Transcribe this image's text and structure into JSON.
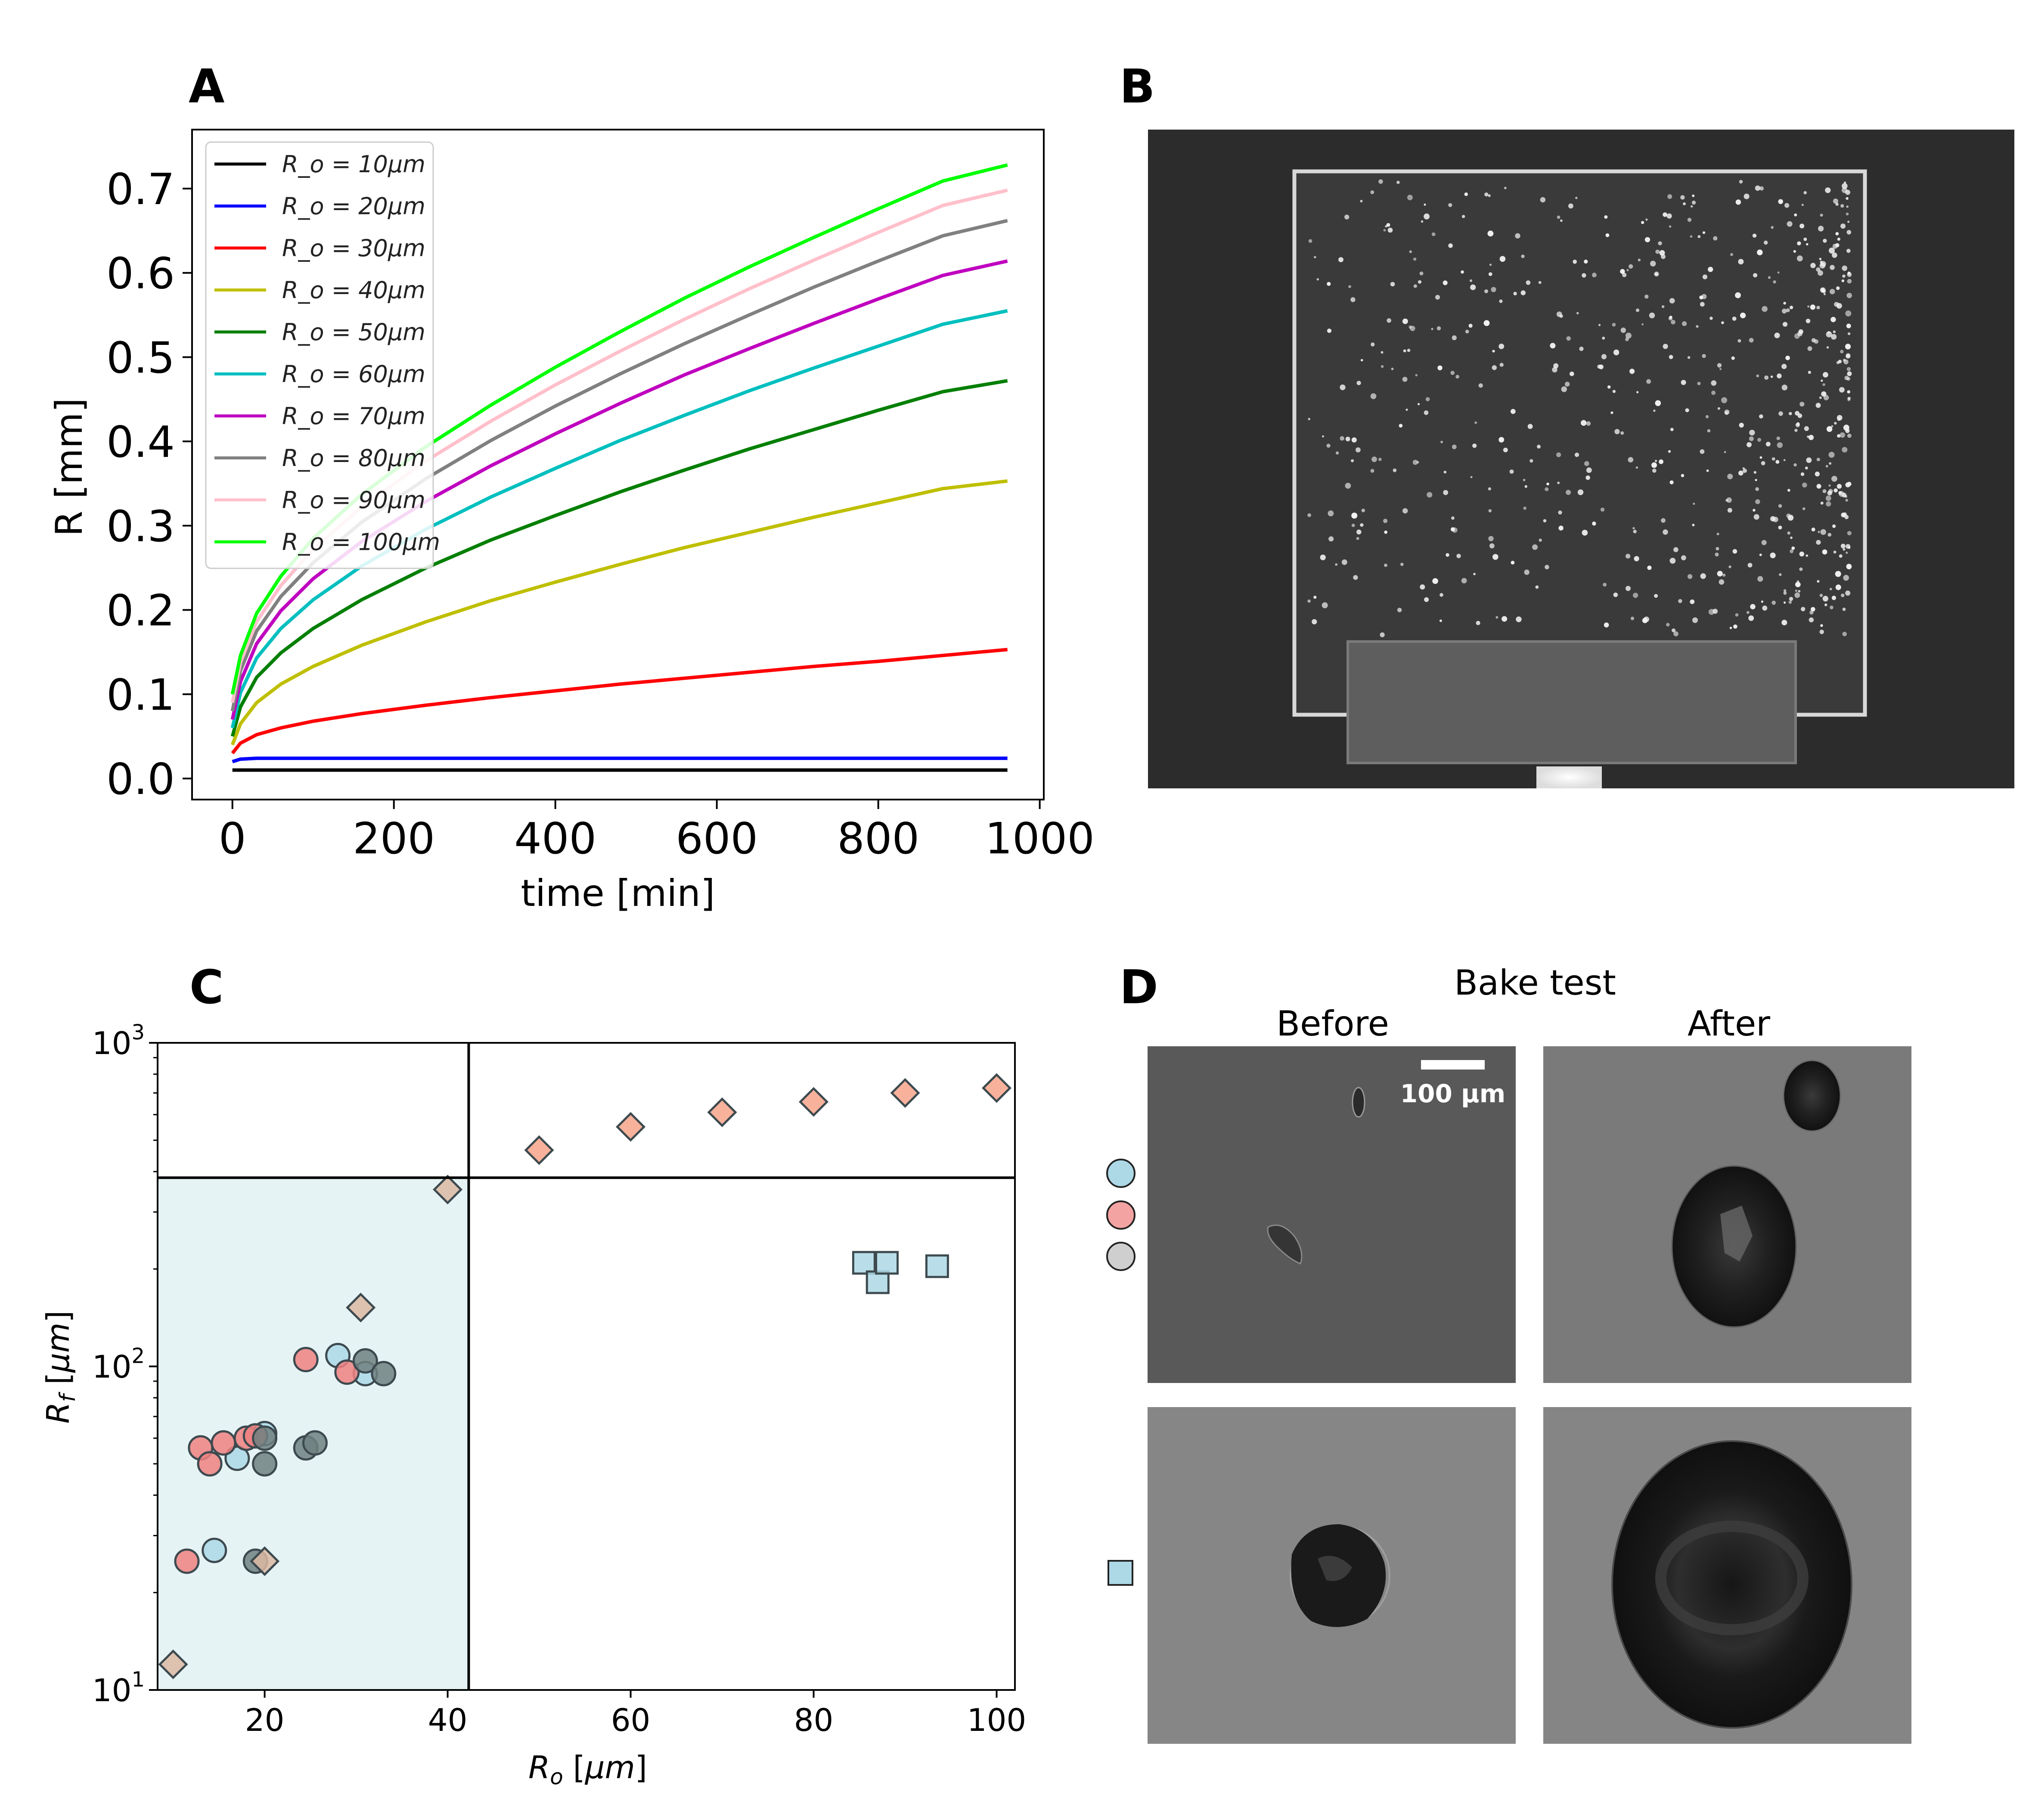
{
  "panels": {
    "A": {
      "letter": "A"
    },
    "B": {
      "letter": "B"
    },
    "C": {
      "letter": "C"
    },
    "D": {
      "letter": "D",
      "title": "Bake test",
      "before_label": "Before",
      "after_label": "After",
      "scale_bar_label": "100 μm"
    }
  },
  "chart_data": [
    {
      "id": "A",
      "type": "line",
      "xlabel": "time [min]",
      "ylabel": "R [mm]",
      "xlim": [
        -50,
        1005
      ],
      "ylim": [
        -0.025,
        0.77
      ],
      "xticks": [
        0,
        200,
        400,
        600,
        800,
        1000
      ],
      "xtick_labels": [
        "0",
        "200",
        "400",
        "600",
        "800",
        "1000"
      ],
      "yticks": [
        0.0,
        0.1,
        0.2,
        0.3,
        0.4,
        0.5,
        0.6,
        0.7
      ],
      "ytick_labels": [
        "0.0",
        "0.1",
        "0.2",
        "0.3",
        "0.4",
        "0.5",
        "0.6",
        "0.7"
      ],
      "legend_location": "top-left",
      "x": [
        0,
        10,
        30,
        60,
        100,
        160,
        240,
        320,
        400,
        480,
        560,
        640,
        720,
        800,
        880,
        960
      ],
      "series": [
        {
          "name": "R_o = 10μm",
          "color": "#000000",
          "values": [
            0.01,
            0.01,
            0.01,
            0.01,
            0.01,
            0.01,
            0.01,
            0.01,
            0.01,
            0.01,
            0.01,
            0.01,
            0.01,
            0.01,
            0.01,
            0.01
          ]
        },
        {
          "name": "R_o = 20μm",
          "color": "#0000ff",
          "values": [
            0.02,
            0.023,
            0.024,
            0.024,
            0.024,
            0.024,
            0.024,
            0.024,
            0.024,
            0.024,
            0.024,
            0.024,
            0.024,
            0.024,
            0.024,
            0.024
          ]
        },
        {
          "name": "R_o = 30μm",
          "color": "#ff0000",
          "values": [
            0.03,
            0.042,
            0.052,
            0.06,
            0.068,
            0.077,
            0.087,
            0.096,
            0.104,
            0.112,
            0.119,
            0.126,
            0.133,
            0.139,
            0.146,
            0.153
          ]
        },
        {
          "name": "R_o = 40μm",
          "color": "#bfbf00",
          "values": [
            0.04,
            0.065,
            0.09,
            0.112,
            0.133,
            0.158,
            0.186,
            0.211,
            0.233,
            0.254,
            0.274,
            0.292,
            0.31,
            0.327,
            0.344,
            0.353
          ]
        },
        {
          "name": "R_o = 50μm",
          "color": "#007f00",
          "values": [
            0.05,
            0.085,
            0.12,
            0.149,
            0.178,
            0.212,
            0.25,
            0.283,
            0.312,
            0.34,
            0.366,
            0.391,
            0.414,
            0.437,
            0.459,
            0.472
          ]
        },
        {
          "name": "R_o = 60μm",
          "color": "#00bfbf",
          "values": [
            0.06,
            0.102,
            0.143,
            0.178,
            0.212,
            0.252,
            0.296,
            0.334,
            0.368,
            0.401,
            0.431,
            0.46,
            0.487,
            0.513,
            0.539,
            0.555
          ]
        },
        {
          "name": "R_o = 70μm",
          "color": "#bf00bf",
          "values": [
            0.07,
            0.115,
            0.16,
            0.199,
            0.237,
            0.281,
            0.329,
            0.371,
            0.409,
            0.445,
            0.479,
            0.51,
            0.54,
            0.569,
            0.597,
            0.614
          ]
        },
        {
          "name": "R_o = 80μm",
          "color": "#808080",
          "values": [
            0.08,
            0.128,
            0.175,
            0.216,
            0.256,
            0.304,
            0.356,
            0.401,
            0.442,
            0.48,
            0.516,
            0.55,
            0.583,
            0.614,
            0.644,
            0.662
          ]
        },
        {
          "name": "R_o = 90μm",
          "color": "#ffc0cb",
          "values": [
            0.09,
            0.138,
            0.186,
            0.229,
            0.272,
            0.322,
            0.377,
            0.424,
            0.467,
            0.507,
            0.545,
            0.581,
            0.615,
            0.648,
            0.68,
            0.698
          ]
        },
        {
          "name": "R_o = 100μm",
          "color": "#00ff00",
          "values": [
            0.1,
            0.146,
            0.196,
            0.24,
            0.285,
            0.337,
            0.394,
            0.443,
            0.488,
            0.53,
            0.57,
            0.607,
            0.642,
            0.676,
            0.709,
            0.728
          ]
        }
      ]
    },
    {
      "id": "C",
      "type": "scatter",
      "xlabel": "R_o [μm]",
      "ylabel": "R_f [μm]",
      "yscale": "log",
      "xlim": [
        8.3,
        102
      ],
      "ylim": [
        10,
        1000
      ],
      "xticks": [
        20,
        40,
        60,
        80,
        100
      ],
      "xtick_labels": [
        "20",
        "40",
        "60",
        "80",
        "100"
      ],
      "ytick_labels": [
        "10^1",
        "10^2",
        "10^3"
      ],
      "threshold_lines": {
        "x": 42.3,
        "y": 383
      },
      "series": [
        {
          "name": "blue circles",
          "marker": "circle",
          "color": "#add8e6",
          "points": [
            [
              14.5,
              27
            ],
            [
              17,
              52
            ],
            [
              19,
              61
            ],
            [
              20,
              62
            ],
            [
              28,
              108
            ],
            [
              31,
              95
            ]
          ]
        },
        {
          "name": "red circles",
          "marker": "circle",
          "color": "#f08080",
          "points": [
            [
              11.5,
              25
            ],
            [
              13,
              56
            ],
            [
              14,
              50
            ],
            [
              15.5,
              58
            ],
            [
              18,
              60
            ],
            [
              19,
              61
            ],
            [
              24.5,
              105
            ],
            [
              29,
              96
            ]
          ]
        },
        {
          "name": "gray circles",
          "marker": "circle",
          "color": "#708080",
          "points": [
            [
              19,
              25
            ],
            [
              20,
              60
            ],
            [
              20,
              50
            ],
            [
              24.5,
              56
            ],
            [
              25.5,
              58
            ],
            [
              31,
              104
            ],
            [
              33,
              95
            ]
          ]
        },
        {
          "name": "salmon diamonds",
          "marker": "diamond",
          "color": "#f7a58a",
          "points": [
            [
              50,
              466
            ],
            [
              60,
              550
            ],
            [
              70,
              610
            ],
            [
              80,
              657
            ],
            [
              90,
              700
            ],
            [
              100,
              725
            ]
          ]
        },
        {
          "name": "tan diamonds",
          "marker": "diamond",
          "color": "#dcb9a3",
          "points": [
            [
              10,
              12
            ],
            [
              20,
              25
            ],
            [
              30.5,
              152
            ],
            [
              40,
              352
            ]
          ]
        },
        {
          "name": "blue squares",
          "marker": "square",
          "color": "#add8e6",
          "points": [
            [
              85.5,
              209
            ],
            [
              87,
              182
            ],
            [
              88,
              209
            ],
            [
              93.5,
              204
            ]
          ]
        }
      ]
    }
  ]
}
